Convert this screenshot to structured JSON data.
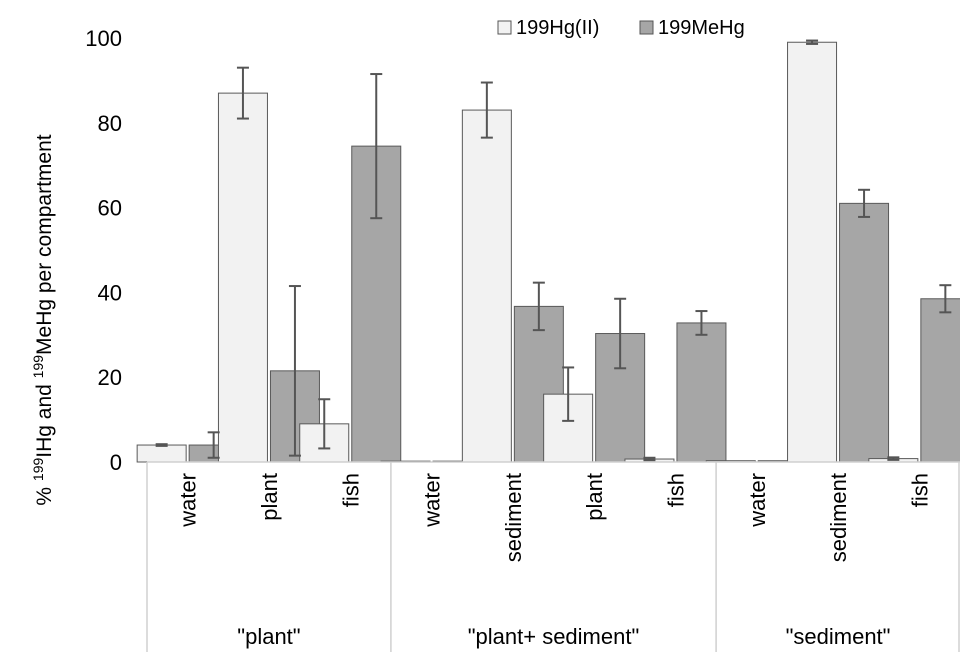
{
  "chart_data": {
    "type": "bar",
    "ylabel": {
      "prefix": "% ",
      "sup1": "199",
      "mid1": "IHg and ",
      "sup2": "199",
      "mid2": "MeHg per compartment"
    },
    "ylim": [
      0,
      100
    ],
    "yticks": [
      "0",
      "20",
      "40",
      "60",
      "80",
      "100"
    ],
    "grid": false,
    "legend_position": "top-right",
    "groups": [
      {
        "name": "\"plant\"",
        "categories": [
          "water",
          "plant",
          "fish"
        ]
      },
      {
        "name": "\"plant+ sediment\"",
        "categories": [
          "water",
          "sediment",
          "plant",
          "fish"
        ]
      },
      {
        "name": "\"sediment\"",
        "categories": [
          "water",
          "sediment",
          "fish"
        ]
      }
    ],
    "series": [
      {
        "name": "199Hg(II)",
        "color": "#f2f2f2",
        "values": [
          4,
          87,
          9,
          0.2,
          83,
          16,
          0.7,
          0.3,
          99,
          0.8
        ],
        "errors": [
          0.2,
          6,
          5.8,
          0.1,
          6.5,
          6.3,
          0.3,
          0.1,
          0.4,
          0.3
        ]
      },
      {
        "name": "199MeHg",
        "color": "#a6a6a6",
        "values": [
          4,
          21.5,
          74.5,
          0.2,
          36.7,
          30.3,
          32.8,
          0.3,
          61,
          38.5
        ],
        "errors": [
          3,
          20,
          17,
          0.1,
          5.6,
          8.2,
          2.8,
          0.1,
          3.2,
          3.2
        ]
      }
    ]
  }
}
